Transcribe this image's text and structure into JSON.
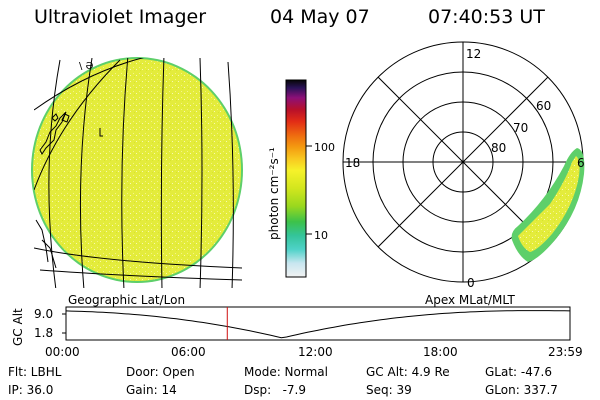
{
  "header": {
    "title": "Ultraviolet Imager",
    "date": "04 May 07",
    "time": "07:40:53 UT"
  },
  "colorbar": {
    "unit_label": "photon cm⁻²s⁻¹",
    "ticks": [
      "100",
      "10"
    ],
    "colors": [
      "#f2f2f2",
      "#c8e6f0",
      "#4fd2c8",
      "#34c49a",
      "#3cc24a",
      "#9ad81e",
      "#d2e61e",
      "#f6f22a",
      "#f8c820",
      "#f49a10",
      "#ee6a10",
      "#e22c16",
      "#b8102a",
      "#8c1078",
      "#2a1258",
      "#060606"
    ]
  },
  "polar_plot": {
    "mlt_labels": {
      "top": "12",
      "left": "18",
      "right": "6",
      "bottom": "0"
    },
    "lat_labels": [
      "60",
      "70",
      "80"
    ]
  },
  "alt_panel": {
    "ylabel": "GC Alt",
    "yticks": [
      "9.0",
      "1.8"
    ],
    "left_label": "Geographic Lat/Lon",
    "right_label": "Apex MLat/MLT",
    "xticks": [
      "00:00",
      "06:00",
      "12:00",
      "18:00",
      "23:59"
    ],
    "current_time_hours": 7.68,
    "perigee_time_hours": 10.3,
    "marker_color": "#d01010"
  },
  "info": [
    [
      "Flt: LBHL",
      "Door: Open",
      "Mode: Normal",
      "GC Alt: 4.9 Re",
      "GLat: -47.6"
    ],
    [
      "IP: 36.0",
      "Gain: 14",
      "Dsp:   -7.9",
      "Seq: 39",
      "GLon: 337.7"
    ]
  ],
  "earth_labels": {
    "coast_label": "\\ Ə"
  }
}
